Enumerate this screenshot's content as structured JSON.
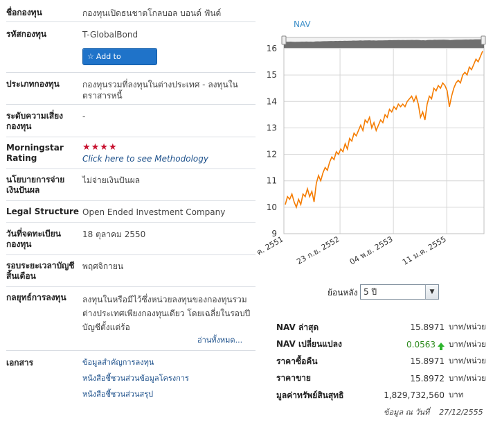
{
  "fund": {
    "name_label": "ชื่อกองทุน",
    "name_value": "กองทุนเปิดธนชาตโกลบอล บอนด์ ฟันด์",
    "code_label": "รหัสกองทุน",
    "code_value": "T-GlobalBond",
    "watchlist_button": "Add to WatchList",
    "type_label": "ประเภทกองทุน",
    "type_value": "กองทุนรวมที่ลงทุนในต่างประเทศ - ลงทุนในตราสารหนี้",
    "risk_label": "ระดับความเสี่ยงกองทุน",
    "risk_value": "-",
    "rating_label": "Morningstar Rating",
    "rating_stars": "★★★★",
    "rating_link": "Click here to see Methodology",
    "dividend_label": "นโยบายการจ่ายเงินปันผล",
    "dividend_value": "ไม่จ่ายเงินปันผล",
    "legal_label": "Legal Structure",
    "legal_value": "Open Ended Investment Company",
    "regdate_label": "วันที่จดทะเบียนกองทุน",
    "regdate_value": "18 ตุลาคม 2550",
    "fiscal_label": "รอบระยะเวลาบัญชีสิ้นเดือน",
    "fiscal_value": "พฤศจิกายน",
    "strategy_label": "กลยุทธ์การลงทุน",
    "strategy_value": "ลงทุนในหรือมีไว้ซึ่งหน่วยลงทุนของกองทุนรวมต่างประเทศเพียงกองทุนเดียว โดยเฉลี่ยในรอบปีบัญชีตั้งแต่ร้อ",
    "read_all": "อ่านทั้งหมด...",
    "docs_label": "เอกสาร",
    "docs": [
      "ข้อมูลสำคัญการลงทุน",
      "หนังสือชี้ชวนส่วนข้อมูลโครงการ",
      "หนังสือชี้ชวนส่วนสรุป"
    ]
  },
  "chart_data": {
    "type": "line",
    "title": "NAV",
    "ylim": [
      9,
      16
    ],
    "yticks": [
      9,
      10,
      11,
      12,
      13,
      14,
      15,
      16
    ],
    "x_ticks": [
      "ค. 2551",
      "23 ก.ย. 2552",
      "04 พ.ย. 2553",
      "11 ม.ค. 2555"
    ],
    "series": [
      {
        "values": [
          10.1,
          10.4,
          10.3,
          10.5,
          10.2,
          10.0,
          10.3,
          10.1,
          10.5,
          10.4,
          10.7,
          10.4,
          10.6,
          10.2,
          10.9,
          11.2,
          11.0,
          11.3,
          11.5,
          11.4,
          11.7,
          11.9,
          11.8,
          12.1,
          12.0,
          12.2,
          12.1,
          12.4,
          12.2,
          12.6,
          12.5,
          12.8,
          12.7,
          12.9,
          13.1,
          12.9,
          13.3,
          13.2,
          13.4,
          13.0,
          13.2,
          12.9,
          13.1,
          13.3,
          13.2,
          13.5,
          13.4,
          13.7,
          13.6,
          13.8,
          13.7,
          13.9,
          13.8,
          13.9,
          13.8,
          14.0,
          14.1,
          14.2,
          14.0,
          14.2,
          13.9,
          13.4,
          13.6,
          13.3,
          13.9,
          14.2,
          14.1,
          14.5,
          14.4,
          14.6,
          14.5,
          14.7,
          14.6,
          14.4,
          13.8,
          14.2,
          14.5,
          14.7,
          14.8,
          14.7,
          15.0,
          15.1,
          15.0,
          15.3,
          15.2,
          15.4,
          15.6,
          15.5,
          15.7,
          15.9
        ]
      }
    ],
    "color": "#f57c00"
  },
  "period": {
    "label": "ย้อนหลัง",
    "selected": "5 ปี"
  },
  "nav_table": [
    {
      "label": "NAV ล่าสุด",
      "value": "15.8971",
      "unit": "บาท/หน่วย"
    },
    {
      "label": "NAV เปลี่ยนแปลง",
      "value": "0.0563",
      "unit": "บาท/หน่วย",
      "up": true
    },
    {
      "label": "ราคาซื้อคืน",
      "value": "15.8971",
      "unit": "บาท/หน่วย"
    },
    {
      "label": "ราคาขาย",
      "value": "15.8972",
      "unit": "บาท/หน่วย"
    },
    {
      "label": "มูลค่าทรัพย์สินสุทธิ",
      "value": "1,829,732,560",
      "unit": "บาท"
    }
  ],
  "as_of": {
    "label": "ข้อมูล ณ วันที่",
    "date": "27/12/2555"
  }
}
